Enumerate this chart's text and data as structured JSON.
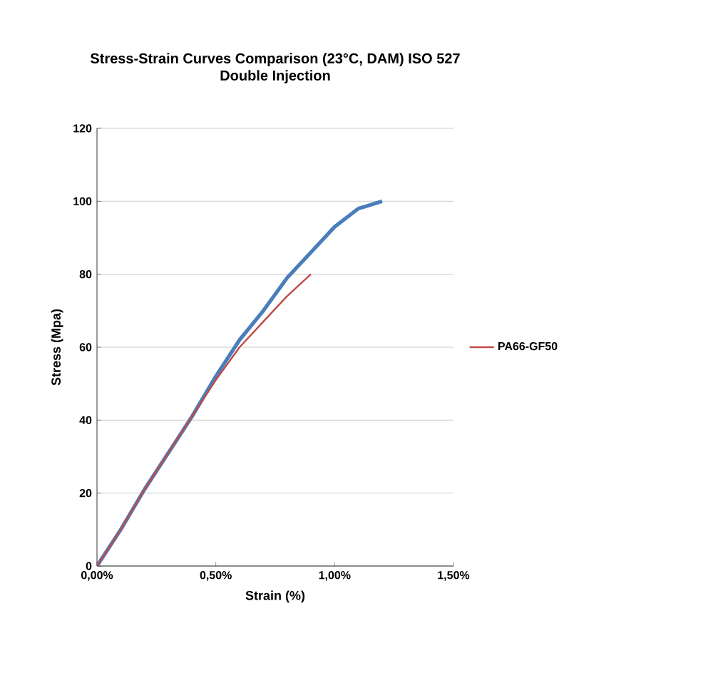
{
  "chart_data": {
    "type": "line",
    "title": "Stress-Strain Curves Comparison (23°C, DAM) ISO 527\nDouble Injection",
    "xlabel": "Strain (%)",
    "ylabel": "Stress (Mpa)",
    "xlim": [
      0,
      1.5
    ],
    "ylim": [
      0,
      120
    ],
    "xticks": [
      {
        "value": 0,
        "label": "0,00%"
      },
      {
        "value": 0.5,
        "label": "0,50%"
      },
      {
        "value": 1.0,
        "label": "1,00%"
      },
      {
        "value": 1.5,
        "label": "1,50%"
      }
    ],
    "yticks": [
      0,
      20,
      40,
      60,
      80,
      100,
      120
    ],
    "grid": "y",
    "legend": "right",
    "marker": "none",
    "line_style": "solid",
    "series": [
      {
        "color": "#4a7ebb",
        "x": [
          0,
          0.1,
          0.2,
          0.3,
          0.4,
          0.5,
          0.6,
          0.7,
          0.8,
          0.9,
          1.0,
          1.1,
          1.2
        ],
        "values": [
          0,
          10,
          21,
          31,
          41,
          52,
          62,
          70,
          79,
          86,
          93,
          98,
          100
        ]
      },
      {
        "name": "PA66-GF50",
        "color": "#be4b48",
        "x": [
          0,
          0.1,
          0.2,
          0.3,
          0.4,
          0.5,
          0.6,
          0.7,
          0.8,
          0.9
        ],
        "values": [
          0,
          10,
          21,
          31,
          41,
          51,
          60,
          67,
          74,
          80
        ]
      }
    ]
  }
}
